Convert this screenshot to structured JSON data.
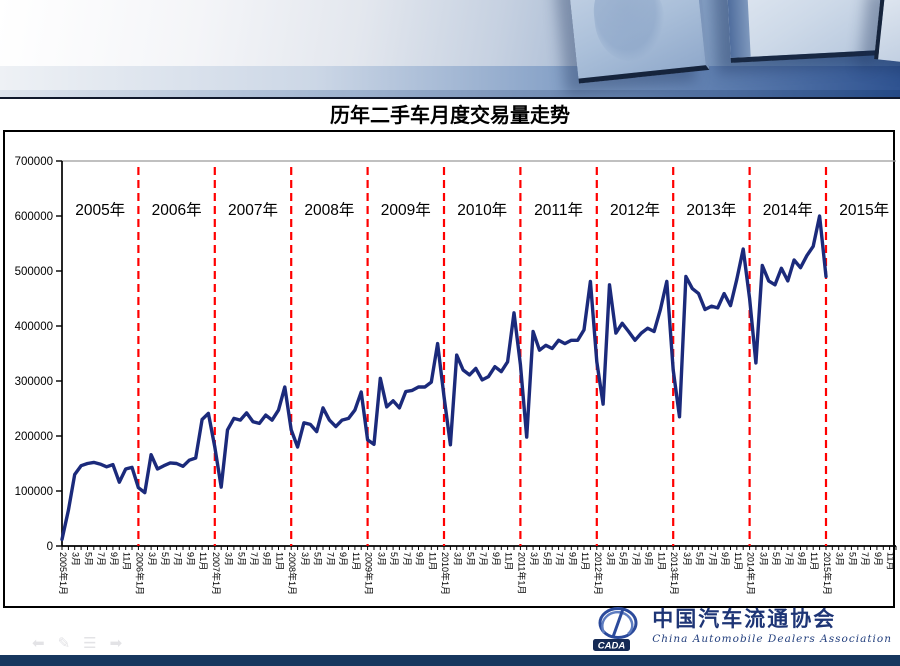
{
  "slide": {
    "title": "历年二手车月度交易量走势"
  },
  "colors": {
    "line": "#1b2a7b",
    "year_divider": "#ff0000",
    "axis": "#000000",
    "plot_top_border": "#9a9a9a",
    "footer_bar": "#17375e",
    "logo_blue": "#1e3576"
  },
  "footer": {
    "nav_icons": [
      "back-arrow",
      "pencil",
      "menu",
      "forward-arrow"
    ],
    "nav_glyphs": [
      "⬅",
      "✎",
      "☰",
      "➡"
    ]
  },
  "logo": {
    "acronym": "CADA",
    "name_cn": "中国汽车流通协会",
    "name_en": "China Automobile Dealers Association"
  },
  "chart_data": {
    "type": "line",
    "title": "历年二手车月度交易量走势",
    "xlabel": "",
    "ylabel": "",
    "ylim": [
      0,
      700000
    ],
    "y_ticks": [
      0,
      100000,
      200000,
      300000,
      400000,
      500000,
      600000,
      700000
    ],
    "x_axis_span_months": 132,
    "x_start": "2005-01",
    "x_axis_end": "2015-12",
    "grid": false,
    "legend": "none",
    "year_labels": [
      "2005年",
      "2006年",
      "2007年",
      "2008年",
      "2009年",
      "2010年",
      "2011年",
      "2012年",
      "2013年",
      "2014年",
      "2015年"
    ],
    "year_divider_at_month_index": [
      12,
      24,
      36,
      48,
      60,
      72,
      84,
      96,
      108,
      120
    ],
    "x_tick_labels": [
      "2005年1月",
      "3月",
      "5月",
      "7月",
      "9月",
      "11月",
      "2006年1月",
      "3月",
      "5月",
      "7月",
      "9月",
      "11月",
      "2007年1月",
      "3月",
      "5月",
      "7月",
      "9月",
      "11月",
      "2008年1月",
      "3月",
      "5月",
      "7月",
      "9月",
      "11月",
      "2009年1月",
      "3月",
      "5月",
      "7月",
      "9月",
      "11月",
      "2010年1月",
      "3月",
      "5月",
      "7月",
      "9月",
      "11月",
      "2011年1月",
      "3月",
      "5月",
      "7月",
      "9月",
      "11月",
      "2012年1月",
      "3月",
      "5月",
      "7月",
      "9月",
      "11月",
      "2013年1月",
      "3月",
      "5月",
      "7月",
      "9月",
      "11月",
      "2014年1月",
      "3月",
      "5月",
      "7月",
      "9月",
      "11月",
      "2015年1月",
      "3月",
      "5月",
      "7月",
      "9月",
      "11月"
    ],
    "series": [
      {
        "name": "二手车月度交易量",
        "first_month": "2005-01",
        "last_month": "2015-01",
        "values": [
          12000,
          65000,
          130000,
          146000,
          150000,
          152000,
          149000,
          144000,
          148000,
          116000,
          140000,
          143000,
          106000,
          97000,
          166000,
          140000,
          146000,
          151000,
          150000,
          145000,
          156000,
          160000,
          230000,
          241000,
          180000,
          107000,
          211000,
          232000,
          229000,
          242000,
          226000,
          223000,
          238000,
          229000,
          247000,
          289000,
          211000,
          180000,
          224000,
          221000,
          208000,
          251000,
          229000,
          217000,
          229000,
          232000,
          247000,
          280000,
          193000,
          185000,
          305000,
          253000,
          264000,
          251000,
          281000,
          283000,
          289000,
          289000,
          298000,
          368000,
          272000,
          184000,
          347000,
          320000,
          311000,
          323000,
          302000,
          308000,
          326000,
          317000,
          335000,
          424000,
          330000,
          198000,
          390000,
          356000,
          365000,
          359000,
          374000,
          368000,
          374000,
          374000,
          393000,
          481000,
          335000,
          258000,
          475000,
          387000,
          405000,
          390000,
          374000,
          387000,
          396000,
          390000,
          430000,
          481000,
          320000,
          235000,
          490000,
          468000,
          459000,
          430000,
          436000,
          433000,
          459000,
          437000,
          485000,
          540000,
          450000,
          333000,
          510000,
          482000,
          475000,
          505000,
          482000,
          520000,
          506000,
          528000,
          545000,
          600000,
          490000
        ]
      }
    ]
  }
}
